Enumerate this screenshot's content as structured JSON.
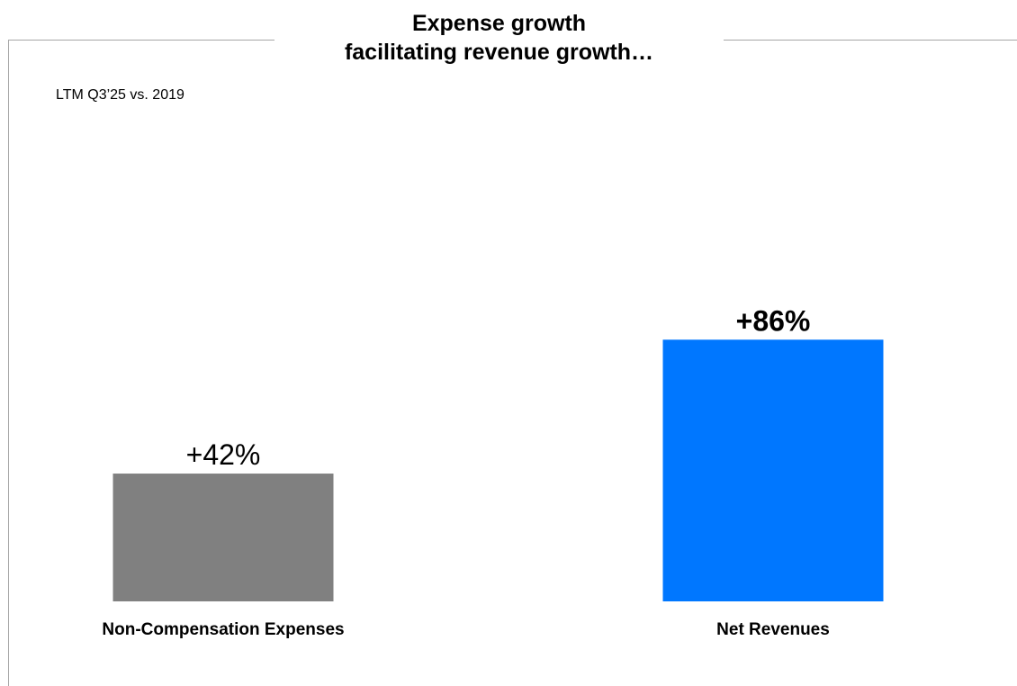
{
  "chart_data": {
    "type": "bar",
    "title_lines": [
      "Expense growth",
      "facilitating revenue growth…"
    ],
    "subtitle": "LTM Q3’25 vs. 2019",
    "xlabel": "",
    "ylabel": "",
    "ylim": [
      0,
      180
    ],
    "grid": false,
    "legend": "none",
    "categories": [
      "Non-Compensation Expenses",
      "Net Revenues"
    ],
    "values": [
      42,
      86
    ],
    "value_labels": [
      "+42%",
      "+86%"
    ],
    "value_label_bold": [
      false,
      true
    ],
    "colors": [
      "#808080",
      "#0077ff"
    ]
  }
}
